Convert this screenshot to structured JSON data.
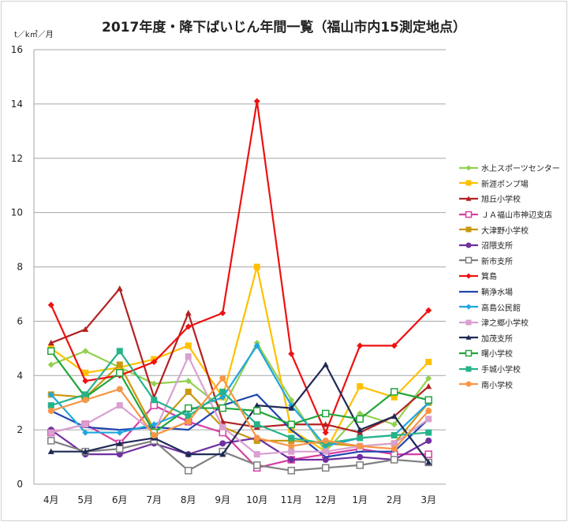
{
  "chart_data": {
    "type": "line",
    "title": "2017年度・降下ばいじん年間一覧（福山市内15測定地点）",
    "ylabel": "t／k㎡／月",
    "xlabel": "",
    "categories": [
      "4月",
      "5月",
      "6月",
      "7月",
      "8月",
      "9月",
      "10月",
      "11月",
      "12月",
      "1月",
      "2月",
      "3月"
    ],
    "ylim": [
      0,
      16
    ],
    "yticks": [
      0,
      2,
      4,
      6,
      8,
      10,
      12,
      14,
      16
    ],
    "grid": true,
    "legend_position": "right",
    "series": [
      {
        "name": "水上スポーツセンター",
        "color": "#92d050",
        "marker": "diamond",
        "values": [
          4.4,
          4.9,
          4.3,
          3.7,
          3.8,
          2.8,
          5.2,
          3.1,
          1.2,
          2.6,
          2.2,
          3.9
        ]
      },
      {
        "name": "新涯ポンプ場",
        "color": "#ffc000",
        "marker": "square",
        "values": [
          5.0,
          4.1,
          4.3,
          4.6,
          5.1,
          3.2,
          8.0,
          2.0,
          1.2,
          3.6,
          3.2,
          4.5
        ]
      },
      {
        "name": "旭丘小学校",
        "color": "#b22222",
        "marker": "triangle",
        "values": [
          5.2,
          5.7,
          7.2,
          3.2,
          6.3,
          2.3,
          2.1,
          2.2,
          2.2,
          1.9,
          2.5,
          3.6
        ]
      },
      {
        "name": "ＪＡ福山市神辺支店",
        "color": "#d63fa3",
        "marker": "open-square",
        "values": [
          1.9,
          2.2,
          1.5,
          2.9,
          2.3,
          1.9,
          0.6,
          0.9,
          1.1,
          1.3,
          1.1,
          1.1
        ]
      },
      {
        "name": "大津野小学校",
        "color": "#c9980f",
        "marker": "square",
        "values": [
          3.3,
          3.2,
          4.4,
          2.0,
          3.4,
          2.1,
          1.6,
          1.6,
          1.5,
          1.4,
          1.5,
          3.0
        ]
      },
      {
        "name": "沼隈支所",
        "color": "#7030a0",
        "marker": "circle",
        "values": [
          2.0,
          1.1,
          1.1,
          1.5,
          1.1,
          1.5,
          1.7,
          0.9,
          0.9,
          1.0,
          0.9,
          1.6
        ]
      },
      {
        "name": "新市支所",
        "color": "#808080",
        "marker": "open-square",
        "values": [
          1.6,
          1.2,
          1.3,
          1.6,
          0.5,
          1.2,
          0.7,
          0.5,
          0.6,
          0.7,
          0.9,
          0.8
        ]
      },
      {
        "name": "箕島",
        "color": "#ee1111",
        "marker": "diamond",
        "values": [
          6.6,
          3.8,
          4.0,
          4.5,
          5.8,
          6.3,
          14.1,
          4.8,
          1.9,
          5.1,
          5.1,
          6.4
        ]
      },
      {
        "name": "鞆浄水場",
        "color": "#2046b0",
        "marker": "none",
        "values": [
          2.7,
          2.1,
          2.0,
          2.1,
          2.0,
          2.9,
          3.3,
          2.0,
          1.0,
          1.2,
          1.2,
          2.4
        ]
      },
      {
        "name": "高島公民館",
        "color": "#1ea7e1",
        "marker": "diamond",
        "values": [
          3.3,
          1.9,
          1.9,
          2.2,
          2.7,
          3.2,
          5.1,
          2.9,
          1.4,
          1.7,
          1.8,
          3.0
        ]
      },
      {
        "name": "津之郷小学校",
        "color": "#d9a0d0",
        "marker": "square",
        "values": [
          1.9,
          2.2,
          2.9,
          1.9,
          4.7,
          2.1,
          1.1,
          1.2,
          1.2,
          1.4,
          1.5,
          2.4
        ]
      },
      {
        "name": "加茂支所",
        "color": "#1f2a55",
        "marker": "triangle",
        "values": [
          1.2,
          1.2,
          1.5,
          1.7,
          1.1,
          1.1,
          2.9,
          2.8,
          4.4,
          2.0,
          2.5,
          0.8
        ]
      },
      {
        "name": "曙小学校",
        "color": "#22a53c",
        "marker": "open-square",
        "values": [
          4.9,
          3.2,
          4.1,
          1.9,
          2.8,
          2.8,
          2.7,
          2.2,
          2.6,
          2.4,
          3.4,
          3.1
        ]
      },
      {
        "name": "手城小学校",
        "color": "#26b38a",
        "marker": "square",
        "values": [
          2.9,
          3.3,
          4.9,
          3.1,
          2.5,
          3.4,
          2.2,
          1.7,
          1.5,
          1.7,
          1.8,
          1.9
        ]
      },
      {
        "name": "南小学校",
        "color": "#f79646",
        "marker": "circle",
        "values": [
          2.7,
          3.1,
          3.5,
          1.8,
          2.3,
          3.9,
          1.7,
          1.4,
          1.6,
          1.4,
          1.3,
          2.7
        ]
      }
    ]
  }
}
